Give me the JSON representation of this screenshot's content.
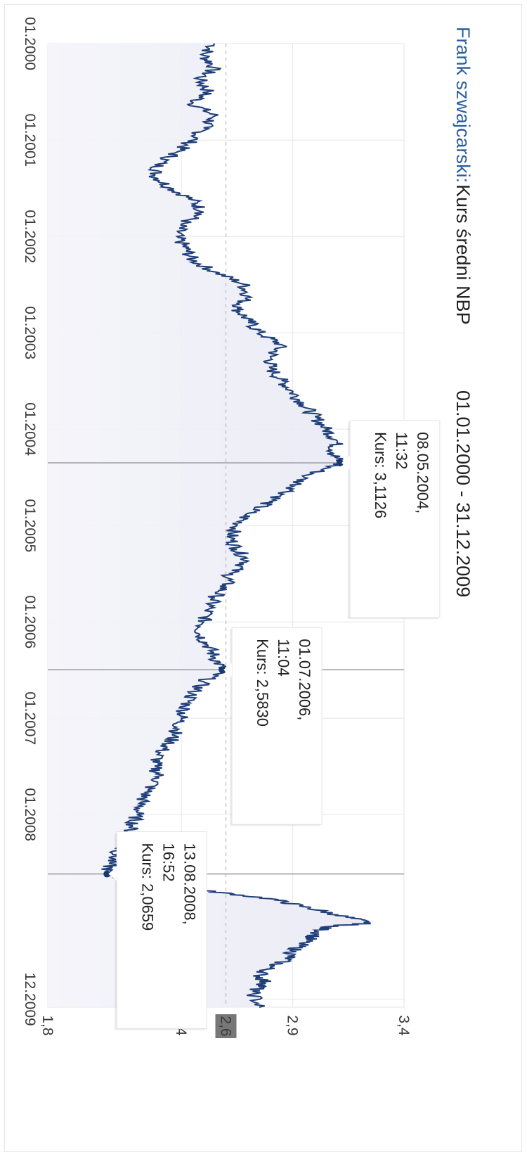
{
  "chart_data": {
    "type": "area",
    "title": {
      "currency": "Frank szwajcarski:",
      "metric": "Kurs średni NBP",
      "date_range": "01.01.2000 - 31.12.2009"
    },
    "x_start": "2000-01-01",
    "x_end": "2009-12-31",
    "x_tick_labels": [
      "01.2000",
      "01.2001",
      "01.2002",
      "01.2003",
      "01.2004",
      "01.2005",
      "01.2006",
      "01.2007",
      "01.2008",
      "12.2009"
    ],
    "y_tick_labels": [
      "1,8",
      "2,4",
      "2,9",
      "3,4"
    ],
    "ylim": [
      1.8,
      3.4
    ],
    "reference_line": {
      "value": 2.6,
      "label": "2,6"
    },
    "grid": true,
    "series": [
      {
        "color": "#1f3f7a",
        "points": [
          [
            "2000-01-01",
            2.55
          ],
          [
            "2000-02-15",
            2.5
          ],
          [
            "2000-04-01",
            2.55
          ],
          [
            "2000-05-15",
            2.48
          ],
          [
            "2000-07-01",
            2.52
          ],
          [
            "2000-08-15",
            2.45
          ],
          [
            "2000-10-01",
            2.55
          ],
          [
            "2000-11-15",
            2.5
          ],
          [
            "2001-01-01",
            2.45
          ],
          [
            "2001-02-15",
            2.38
          ],
          [
            "2001-04-01",
            2.3
          ],
          [
            "2001-05-15",
            2.28
          ],
          [
            "2001-07-01",
            2.35
          ],
          [
            "2001-08-15",
            2.45
          ],
          [
            "2001-10-01",
            2.5
          ],
          [
            "2001-11-15",
            2.4
          ],
          [
            "2002-01-01",
            2.38
          ],
          [
            "2002-02-15",
            2.42
          ],
          [
            "2002-04-01",
            2.45
          ],
          [
            "2002-05-15",
            2.55
          ],
          [
            "2002-07-01",
            2.68
          ],
          [
            "2002-08-15",
            2.7
          ],
          [
            "2002-10-01",
            2.65
          ],
          [
            "2002-11-15",
            2.7
          ],
          [
            "2003-01-01",
            2.75
          ],
          [
            "2003-02-15",
            2.85
          ],
          [
            "2003-04-01",
            2.8
          ],
          [
            "2003-05-15",
            2.8
          ],
          [
            "2003-07-01",
            2.85
          ],
          [
            "2003-08-15",
            2.9
          ],
          [
            "2003-10-01",
            2.95
          ],
          [
            "2003-11-15",
            3.0
          ],
          [
            "2004-01-01",
            3.05
          ],
          [
            "2004-02-15",
            3.1
          ],
          [
            "2004-04-01",
            3.08
          ],
          [
            "2004-05-08",
            3.1126
          ],
          [
            "2004-07-01",
            2.95
          ],
          [
            "2004-08-15",
            2.9
          ],
          [
            "2004-10-01",
            2.8
          ],
          [
            "2004-11-15",
            2.7
          ],
          [
            "2005-01-01",
            2.65
          ],
          [
            "2005-02-15",
            2.62
          ],
          [
            "2005-04-01",
            2.65
          ],
          [
            "2005-05-15",
            2.7
          ],
          [
            "2005-07-01",
            2.62
          ],
          [
            "2005-08-15",
            2.6
          ],
          [
            "2005-10-01",
            2.55
          ],
          [
            "2005-11-15",
            2.52
          ],
          [
            "2006-01-01",
            2.5
          ],
          [
            "2006-02-15",
            2.48
          ],
          [
            "2006-04-01",
            2.52
          ],
          [
            "2006-05-15",
            2.55
          ],
          [
            "2006-07-01",
            2.583
          ],
          [
            "2006-08-15",
            2.5
          ],
          [
            "2006-10-01",
            2.45
          ],
          [
            "2006-11-15",
            2.42
          ],
          [
            "2007-01-01",
            2.4
          ],
          [
            "2007-02-15",
            2.38
          ],
          [
            "2007-04-01",
            2.35
          ],
          [
            "2007-05-15",
            2.3
          ],
          [
            "2007-07-01",
            2.28
          ],
          [
            "2007-08-15",
            2.3
          ],
          [
            "2007-10-01",
            2.25
          ],
          [
            "2007-11-15",
            2.22
          ],
          [
            "2008-01-01",
            2.2
          ],
          [
            "2008-02-15",
            2.18
          ],
          [
            "2008-04-01",
            2.15
          ],
          [
            "2008-05-15",
            2.12
          ],
          [
            "2008-07-01",
            2.08
          ],
          [
            "2008-08-13",
            2.0659
          ],
          [
            "2008-10-01",
            2.25
          ],
          [
            "2008-10-15",
            2.5
          ],
          [
            "2008-11-15",
            2.8
          ],
          [
            "2008-12-15",
            2.95
          ],
          [
            "2009-01-15",
            3.1
          ],
          [
            "2009-02-15",
            3.25
          ],
          [
            "2009-03-01",
            3.05
          ],
          [
            "2009-04-01",
            3.0
          ],
          [
            "2009-05-01",
            2.95
          ],
          [
            "2009-06-01",
            2.9
          ],
          [
            "2009-07-01",
            2.88
          ],
          [
            "2009-08-01",
            2.8
          ],
          [
            "2009-09-01",
            2.75
          ],
          [
            "2009-10-01",
            2.78
          ],
          [
            "2009-11-01",
            2.72
          ],
          [
            "2009-12-31",
            2.75
          ]
        ]
      }
    ],
    "tooltips": [
      {
        "date": "08.05.2004,",
        "time": "11:32",
        "value": "Kurs: 3,1126",
        "x": "2004-05-08",
        "y": 3.1126
      },
      {
        "date": "01.07.2006,",
        "time": "11:04",
        "value": "Kurs: 2,5830",
        "x": "2006-07-01",
        "y": 2.583
      },
      {
        "date": "13.08.2008,",
        "time": "16:52",
        "value": "Kurs: 2,0659",
        "x": "2008-08-13",
        "y": 2.0659
      }
    ]
  }
}
